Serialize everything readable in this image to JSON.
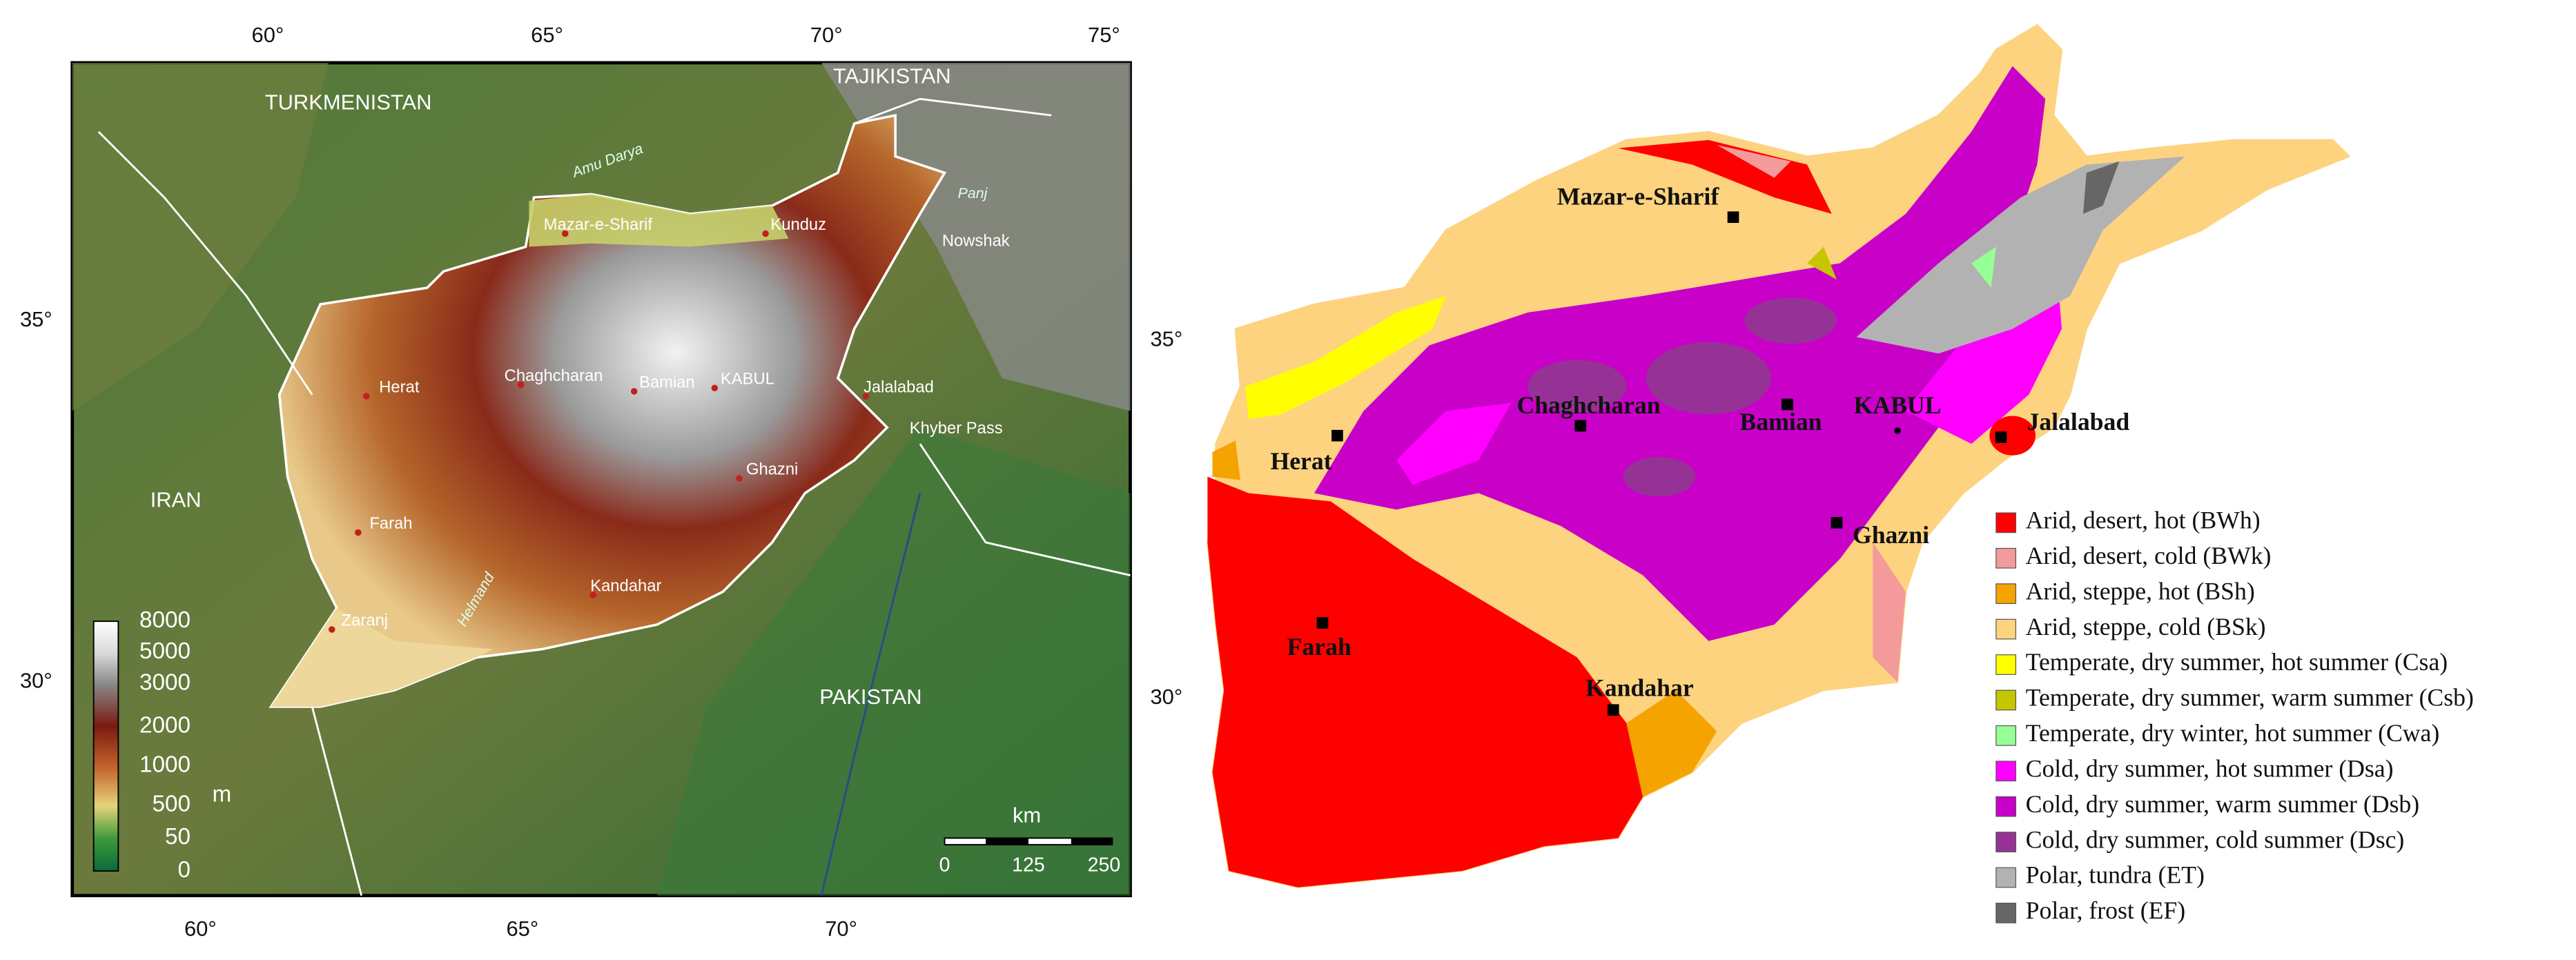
{
  "left_map": {
    "longitude_labels_top": [
      "60°",
      "65°",
      "70°",
      "75°"
    ],
    "longitude_labels_bottom": [
      "60°",
      "65°",
      "70°"
    ],
    "latitude_labels_left": [
      "35°",
      "30°"
    ],
    "latitude_labels_right": [
      "35°",
      "30°"
    ],
    "countries": [
      "TURKMENISTAN",
      "TAJIKISTAN",
      "IRAN",
      "PAKISTAN"
    ],
    "places": [
      "Mazar-e-Sharif",
      "Kunduz",
      "Herat",
      "Chaghcharan",
      "Bamian",
      "KABUL",
      "Jalalabad",
      "Ghazni",
      "Farah",
      "Kandahar",
      "Zaranj",
      "Nowshak",
      "Khyber Pass"
    ],
    "rivers": [
      "Amu Darya",
      "Panj",
      "Helmand"
    ],
    "elevation_legend": {
      "ticks": [
        "8000",
        "5000",
        "3000",
        "2000",
        "1000",
        "500",
        "50",
        "0"
      ],
      "unit": "m"
    },
    "scale_bar": {
      "unit": "km",
      "ticks": [
        "0",
        "125",
        "250"
      ]
    }
  },
  "right_map": {
    "cities": [
      "Mazar-e-Sharif",
      "Herat",
      "Chaghcharan",
      "Bamian",
      "KABUL",
      "Jalalabad",
      "Ghazni",
      "Farah",
      "Kandahar"
    ],
    "legend": [
      {
        "label": "Arid, desert, hot (BWh)",
        "color": "#ff0000"
      },
      {
        "label": "Arid, desert, cold (BWk)",
        "color": "#f49a9a"
      },
      {
        "label": "Arid, steppe, hot (BSh)",
        "color": "#f5a300"
      },
      {
        "label": "Arid, steppe, cold (BSk)",
        "color": "#fdd37f"
      },
      {
        "label": "Temperate, dry summer, hot summer (Csa)",
        "color": "#ffff00"
      },
      {
        "label": "Temperate, dry summer, warm summer (Csb)",
        "color": "#c6c600"
      },
      {
        "label": "Temperate, dry winter, hot summer (Cwa)",
        "color": "#96ff96"
      },
      {
        "label": "Cold, dry summer, hot summer (Dsa)",
        "color": "#ff00ff"
      },
      {
        "label": "Cold, dry summer, warm summer (Dsb)",
        "color": "#c800c8"
      },
      {
        "label": "Cold, dry summer, cold summer (Dsc)",
        "color": "#963296"
      },
      {
        "label": "Polar, tundra (ET)",
        "color": "#b2b2b2"
      },
      {
        "label": "Polar, frost (EF)",
        "color": "#666666"
      }
    ]
  }
}
